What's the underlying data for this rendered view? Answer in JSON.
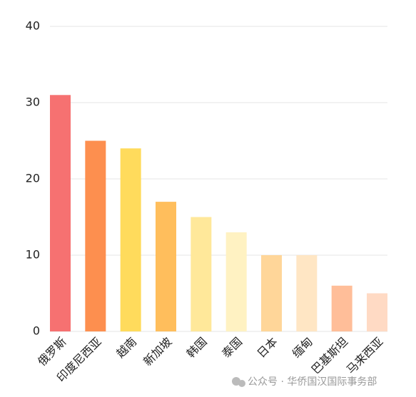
{
  "chart_data": {
    "type": "bar",
    "categories": [
      "俄罗斯",
      "印度尼西亚",
      "越南",
      "新加坡",
      "韩国",
      "泰国",
      "日本",
      "缅甸",
      "巴基斯坦",
      "马来西亚"
    ],
    "values": [
      31,
      25,
      24,
      17,
      15,
      13,
      10,
      10,
      6,
      5
    ],
    "colors": [
      "#f67171",
      "#fd8f4f",
      "#ffdb5c",
      "#ffbe5c",
      "#ffe89a",
      "#fff2c2",
      "#ffd699",
      "#ffe6c4",
      "#ffbe99",
      "#ffdac4"
    ],
    "ylim": [
      0,
      40
    ],
    "yticks": [
      0,
      10,
      20,
      30,
      40
    ],
    "grid": true,
    "watermark": "公众号 · 华侨国汉国际事务部"
  }
}
